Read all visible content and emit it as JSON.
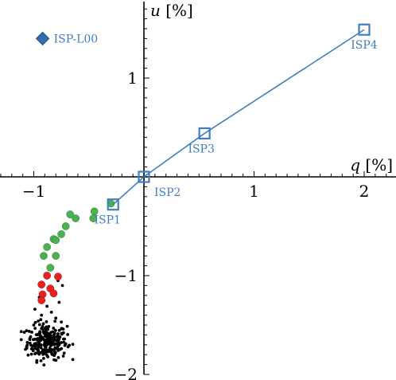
{
  "chart_data": {
    "type": "scatter",
    "xlabel_var": "q",
    "xlabel_unit": "[%]",
    "ylabel_var": "u",
    "ylabel_unit": "[%]",
    "xlim": [
      -1.3,
      2.3
    ],
    "ylim": [
      -2.05,
      0.78
    ],
    "x_ticks": [
      -1,
      1,
      2
    ],
    "x_tick_labels": [
      "−1",
      "1",
      "2"
    ],
    "y_ticks": [
      1,
      -1,
      -2
    ],
    "y_tick_labels": [
      "1",
      "−1",
      "−2"
    ],
    "grid": false,
    "colors": {
      "line": "#3f7fbf",
      "diamond": "#2f6fb0",
      "green": "#4caf50",
      "red": "#e52222",
      "black": "#000000",
      "label": "#3f7fbf"
    },
    "isp_line": {
      "x": [
        -0.28,
        0.0,
        0.55,
        2.0
      ],
      "y": [
        -0.28,
        0.0,
        0.44,
        1.49
      ],
      "labels": [
        "ISP1",
        "ISP2",
        "ISP3",
        "ISP4"
      ]
    },
    "isp_l00": {
      "x": -0.92,
      "y": 1.4,
      "label": "ISP-L00"
    },
    "green_points": {
      "x": [
        -0.3,
        -0.45,
        -0.46,
        -0.62,
        -0.67,
        -0.71,
        -0.75,
        -0.82,
        -0.8,
        -0.88,
        -0.91,
        -0.8,
        -0.85
      ],
      "y": [
        -0.27,
        -0.35,
        -0.42,
        -0.42,
        -0.38,
        -0.5,
        -0.58,
        -0.63,
        -0.64,
        -0.71,
        -0.8,
        -0.8,
        -0.92
      ]
    },
    "red_points": {
      "x": [
        -0.88,
        -0.78,
        -0.93,
        -0.85,
        -0.82,
        -0.92,
        -0.93
      ],
      "y": [
        -1.0,
        -1.01,
        -1.09,
        -1.13,
        -1.18,
        -1.19,
        -1.25
      ]
    },
    "black_cluster": {
      "center": [
        -0.88,
        -1.67
      ],
      "spread": [
        0.09,
        0.09
      ],
      "count": 260
    }
  }
}
